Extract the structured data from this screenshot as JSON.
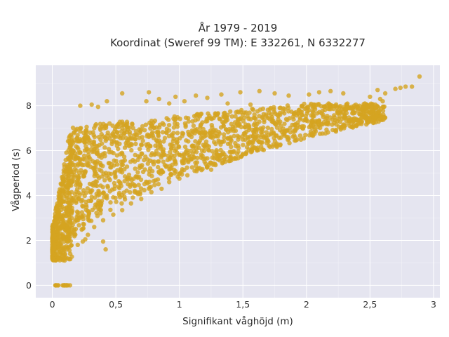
{
  "chart_data": {
    "type": "scatter",
    "title_line1": "År 1979 - 2019",
    "title_line2": "Koordinat (Sweref 99 TM): E 332261, N 6332277",
    "xlabel": "Signifikant våghöjd (m)",
    "ylabel": "Vågperiod (s)",
    "xlim": [
      -0.13,
      3.05
    ],
    "ylim": [
      -0.55,
      9.8
    ],
    "x_ticks": [
      0,
      0.5,
      1,
      1.5,
      2,
      2.5,
      3
    ],
    "x_tick_labels": [
      "0",
      "0,5",
      "1",
      "1,5",
      "2",
      "2,5",
      "3"
    ],
    "y_ticks": [
      0,
      2,
      4,
      6,
      8
    ],
    "y_tick_labels": [
      "0",
      "2",
      "4",
      "6",
      "8"
    ],
    "grid": true,
    "legend": "none",
    "colors": {
      "marker": "#d4a420",
      "plot_bg": "#e5e5f0",
      "grid": "#ffffff"
    },
    "series": [
      {
        "outliers": [
          [
            2.89,
            9.3
          ],
          [
            2.83,
            8.85
          ],
          [
            2.78,
            8.85
          ],
          [
            2.74,
            8.8
          ],
          [
            2.7,
            8.75
          ],
          [
            2.56,
            8.7
          ],
          [
            2.62,
            8.55
          ],
          [
            2.58,
            8.3
          ],
          [
            2.6,
            8.2
          ],
          [
            2.5,
            8.4
          ],
          [
            2.46,
            8.1
          ],
          [
            2.29,
            8.55
          ],
          [
            2.19,
            8.65
          ],
          [
            2.1,
            8.6
          ],
          [
            2.02,
            8.5
          ],
          [
            1.86,
            8.45
          ],
          [
            1.75,
            8.55
          ],
          [
            1.63,
            8.65
          ],
          [
            1.48,
            8.6
          ],
          [
            1.33,
            8.5
          ],
          [
            1.22,
            8.35
          ],
          [
            1.13,
            8.45
          ],
          [
            0.97,
            8.4
          ],
          [
            0.76,
            8.6
          ],
          [
            0.55,
            8.55
          ],
          [
            0.74,
            8.2
          ],
          [
            0.92,
            8.1
          ],
          [
            0.43,
            8.2
          ],
          [
            0.36,
            7.95
          ],
          [
            0.31,
            8.05
          ],
          [
            0.22,
            8.0
          ],
          [
            1.38,
            8.1
          ],
          [
            1.56,
            8.05
          ],
          [
            1.04,
            8.2
          ],
          [
            0.84,
            8.3
          ],
          [
            1.7,
            6.4
          ],
          [
            1.6,
            6.1
          ],
          [
            1.5,
            5.85
          ],
          [
            1.35,
            5.6
          ],
          [
            1.25,
            5.15
          ],
          [
            1.12,
            5.1
          ],
          [
            1.0,
            4.75
          ],
          [
            0.92,
            4.6
          ],
          [
            0.86,
            4.3
          ],
          [
            0.78,
            4.15
          ],
          [
            0.7,
            3.85
          ],
          [
            0.62,
            3.65
          ],
          [
            0.55,
            3.35
          ],
          [
            0.48,
            3.15
          ],
          [
            0.4,
            2.9
          ],
          [
            0.33,
            2.6
          ],
          [
            0.28,
            2.25
          ],
          [
            0.24,
            1.95
          ],
          [
            0.2,
            1.8
          ],
          [
            0.4,
            1.95
          ],
          [
            0.42,
            1.6
          ],
          [
            1.95,
            7.05
          ],
          [
            2.1,
            7.35
          ],
          [
            2.3,
            7.55
          ],
          [
            0.26,
            2.05
          ]
        ]
      }
    ]
  }
}
